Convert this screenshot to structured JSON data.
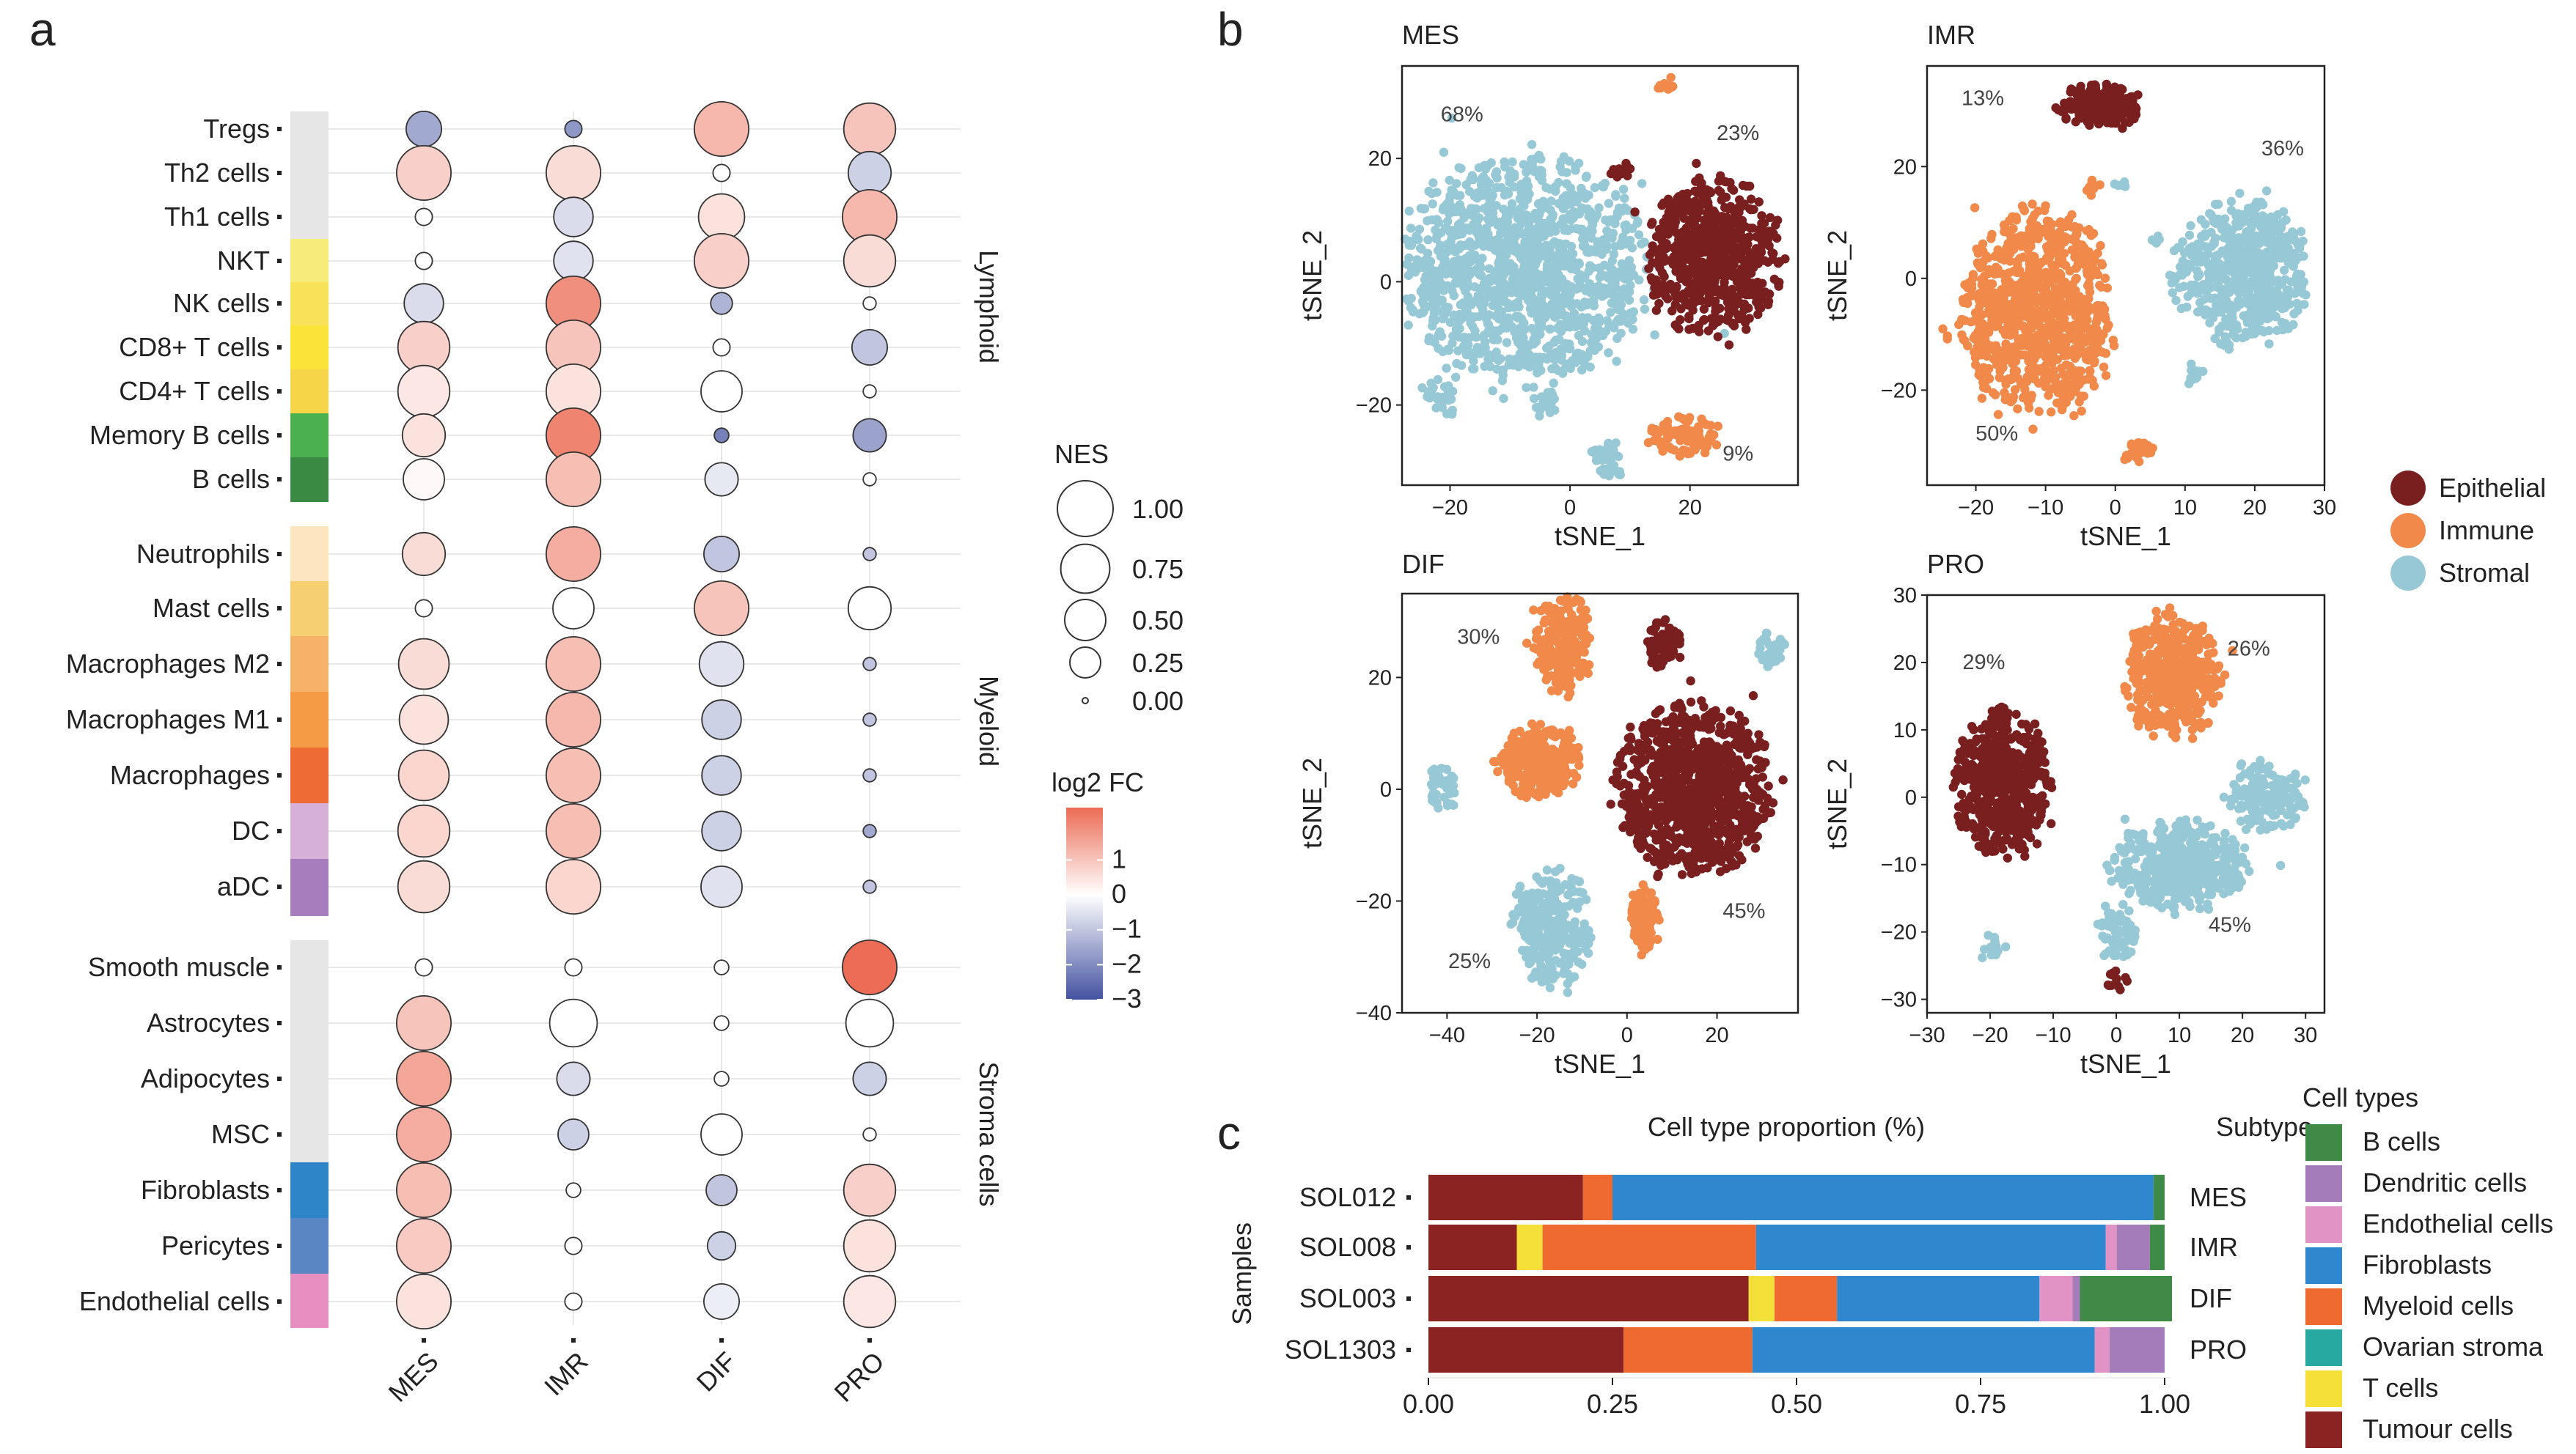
{
  "panel_labels": {
    "a": "a",
    "b": "b",
    "c": "c"
  },
  "chart_data": [
    {
      "type": "bubble",
      "panel": "a",
      "columns": [
        "MES",
        "IMR",
        "DIF",
        "PRO"
      ],
      "rows": [
        "Tregs",
        "Th2 cells",
        "Th1 cells",
        "NKT",
        "NK cells",
        "CD8+ T cells",
        "CD4+ T cells",
        "Memory B cells",
        "B cells",
        "Neutrophils",
        "Mast cells",
        "Macrophages M2",
        "Macrophages M1",
        "Macrophages",
        "DC",
        "aDC",
        "Smooth muscle",
        "Astrocytes",
        "Adipocytes",
        "MSC",
        "Fibroblasts",
        "Pericytes",
        "Endothelial cells"
      ],
      "groups": [
        {
          "name": "Lymphoid",
          "rows": [
            0,
            8
          ]
        },
        {
          "name": "Myeloid",
          "rows": [
            9,
            15
          ]
        },
        {
          "name": "Stroma cells",
          "rows": [
            16,
            22
          ]
        }
      ],
      "row_colors": [
        "#e6e6e6",
        "#e6e6e6",
        "#e6e6e6",
        "#f7ec7a",
        "#f8e25a",
        "#fbe33a",
        "#f7d548",
        "#4bb14f",
        "#3a8a44",
        "#fde6bf",
        "#f5cf72",
        "#f7b26a",
        "#f59a45",
        "#ef6b34",
        "#d6b0d6",
        "#a77dbe",
        "#e6e6e6",
        "#e6e6e6",
        "#e6e6e6",
        "#e6e6e6",
        "#2e86c8",
        "#5b86c4",
        "#e88fc1"
      ],
      "nes": [
        [
          0.35,
          0.05,
          0.95,
          0.85
        ],
        [
          0.95,
          0.95,
          0.05,
          0.55
        ],
        [
          0.05,
          0.45,
          0.65,
          0.95
        ],
        [
          0.05,
          0.45,
          0.95,
          0.85
        ],
        [
          0.45,
          0.95,
          0.1,
          0.02
        ],
        [
          0.85,
          0.95,
          0.05,
          0.35
        ],
        [
          0.85,
          0.95,
          0.5,
          0.02
        ],
        [
          0.55,
          0.95,
          0.03,
          0.3
        ],
        [
          0.5,
          0.95,
          0.3,
          0.02
        ],
        [
          0.55,
          0.95,
          0.35,
          0.02
        ],
        [
          0.05,
          0.5,
          0.95,
          0.55
        ],
        [
          0.8,
          0.95,
          0.6,
          0.02
        ],
        [
          0.75,
          0.95,
          0.45,
          0.02
        ],
        [
          0.8,
          0.95,
          0.45,
          0.02
        ],
        [
          0.85,
          0.95,
          0.45,
          0.02
        ],
        [
          0.85,
          0.95,
          0.5,
          0.02
        ],
        [
          0.05,
          0.05,
          0.03,
          0.95
        ],
        [
          0.95,
          0.7,
          0.03,
          0.7
        ],
        [
          0.95,
          0.3,
          0.03,
          0.3
        ],
        [
          0.95,
          0.25,
          0.5,
          0.02
        ],
        [
          0.95,
          0.03,
          0.25,
          0.85
        ],
        [
          0.95,
          0.05,
          0.2,
          0.85
        ],
        [
          0.95,
          0.05,
          0.35,
          0.85
        ]
      ],
      "log2fc": [
        [
          -1.5,
          -1.8,
          1.2,
          1
        ],
        [
          0.8,
          0.6,
          0,
          -0.8
        ],
        [
          0,
          -0.6,
          0.5,
          1.2
        ],
        [
          0,
          -0.5,
          0.8,
          0.6
        ],
        [
          -0.6,
          1.9,
          -1.3,
          0
        ],
        [
          0.8,
          1,
          0,
          -1
        ],
        [
          0.4,
          0.5,
          0,
          0
        ],
        [
          0.5,
          2.1,
          -2.2,
          -1.6
        ],
        [
          0.1,
          1.1,
          -0.4,
          0
        ],
        [
          0.6,
          1.4,
          -1,
          -1
        ],
        [
          0,
          0,
          1,
          0
        ],
        [
          0.6,
          1.1,
          -0.5,
          -1
        ],
        [
          0.5,
          1.2,
          -0.8,
          -1
        ],
        [
          0.7,
          1.1,
          -0.8,
          -1
        ],
        [
          0.7,
          1.1,
          -0.8,
          -1.5
        ],
        [
          0.6,
          0.7,
          -0.5,
          -1
        ],
        [
          0,
          0,
          0,
          2.8
        ],
        [
          1,
          0,
          0,
          0
        ],
        [
          1.5,
          -0.6,
          0,
          -0.8
        ],
        [
          1.4,
          -0.8,
          0,
          0
        ],
        [
          1.1,
          0,
          -1,
          0.8
        ],
        [
          0.9,
          0,
          -0.8,
          0.5
        ],
        [
          0.5,
          0,
          -0.3,
          0.4
        ]
      ],
      "nes_legend": {
        "title": "NES",
        "labels": [
          "1.00",
          "0.75",
          "0.50",
          "0.25",
          "0.00"
        ],
        "values": [
          1,
          0.75,
          0.5,
          0.25,
          0
        ]
      },
      "fc_legend": {
        "title": "log2 FC",
        "labels": [
          "1",
          "0",
          "−1",
          "−2",
          "−3"
        ],
        "values": [
          1,
          0,
          -1,
          -2,
          -3
        ],
        "range": [
          -3,
          2.5
        ]
      }
    },
    {
      "type": "scatter",
      "panel": "b",
      "xlabel": "tSNE_1",
      "ylabel": "tSNE_2",
      "legend": [
        {
          "name": "Epithelial",
          "color": "#7a1f1f"
        },
        {
          "name": "Immune",
          "color": "#f0894a"
        },
        {
          "name": "Stromal",
          "color": "#97c8d6"
        }
      ],
      "plots": [
        {
          "title": "MES",
          "xlim": [
            -28,
            38
          ],
          "ylim": [
            -33,
            35
          ],
          "xticks": [
            -20,
            0,
            20
          ],
          "xtick_labels": [
            "−20",
            "0",
            "20"
          ],
          "yticks": [
            20,
            0,
            -20
          ],
          "ytick_labels": [
            "20",
            "0",
            "−20"
          ],
          "annotations": [
            {
              "text": "68%",
              "x": -18,
              "y": 26
            },
            {
              "text": "23%",
              "x": 28,
              "y": 23
            },
            {
              "text": "9%",
              "x": 28,
              "y": -29
            }
          ],
          "clusters": [
            {
              "type": "Stromal",
              "cx": -8,
              "cy": 2,
              "rx": 19,
              "ry": 17,
              "n": 1300,
              "seed": 11
            },
            {
              "type": "Epithelial",
              "cx": 24,
              "cy": 4,
              "rx": 10,
              "ry": 12,
              "n": 650,
              "seed": 12
            },
            {
              "type": "Immune",
              "cx": 19,
              "cy": -25,
              "rx": 6,
              "ry": 3,
              "n": 90,
              "seed": 13
            },
            {
              "type": "Stromal",
              "cx": 7,
              "cy": -29,
              "rx": 3,
              "ry": 3,
              "n": 40,
              "seed": 14
            },
            {
              "type": "Stromal",
              "cx": -21,
              "cy": -18,
              "rx": 3,
              "ry": 4,
              "n": 30,
              "seed": 15
            },
            {
              "type": "Stromal",
              "cx": -4,
              "cy": -20,
              "rx": 2,
              "ry": 2,
              "n": 18,
              "seed": 16
            },
            {
              "type": "Immune",
              "cx": 16,
              "cy": 32,
              "rx": 1.3,
              "ry": 1.3,
              "n": 10,
              "seed": 17
            },
            {
              "type": "Epithelial",
              "cx": 8,
              "cy": 18,
              "rx": 2,
              "ry": 1.5,
              "n": 12,
              "seed": 18
            }
          ]
        },
        {
          "title": "IMR",
          "xlim": [
            -27,
            30
          ],
          "ylim": [
            -37,
            38
          ],
          "xticks": [
            -20,
            -10,
            0,
            10,
            20,
            30
          ],
          "xtick_labels": [
            "−20",
            "−10",
            "0",
            "10",
            "20",
            "30"
          ],
          "yticks": [
            20,
            0,
            -20
          ],
          "ytick_labels": [
            "20",
            "0",
            "−20"
          ],
          "annotations": [
            {
              "text": "13%",
              "x": -19,
              "y": 31
            },
            {
              "text": "36%",
              "x": 24,
              "y": 22
            },
            {
              "text": "50%",
              "x": -17,
              "y": -29
            }
          ],
          "clusters": [
            {
              "type": "Epithelial",
              "cx": -2,
              "cy": 31,
              "rx": 5.5,
              "ry": 3.5,
              "n": 200,
              "seed": 21
            },
            {
              "type": "Immune",
              "cx": -11,
              "cy": -6,
              "rx": 10,
              "ry": 17,
              "n": 900,
              "seed": 22
            },
            {
              "type": "Stromal",
              "cx": 18,
              "cy": 1,
              "rx": 9,
              "ry": 12,
              "n": 600,
              "seed": 23
            },
            {
              "type": "Immune",
              "cx": 3,
              "cy": -31,
              "rx": 2,
              "ry": 2,
              "n": 35,
              "seed": 24
            },
            {
              "type": "Immune",
              "cx": -3,
              "cy": 16,
              "rx": 1.2,
              "ry": 1.5,
              "n": 10,
              "seed": 25
            },
            {
              "type": "Stromal",
              "cx": 1,
              "cy": 17,
              "rx": 1,
              "ry": 1,
              "n": 6,
              "seed": 26
            },
            {
              "type": "Stromal",
              "cx": 11,
              "cy": -17,
              "rx": 1.5,
              "ry": 2,
              "n": 12,
              "seed": 27
            },
            {
              "type": "Stromal",
              "cx": 6,
              "cy": 7,
              "rx": 0.8,
              "ry": 1,
              "n": 6,
              "seed": 28
            }
          ]
        },
        {
          "title": "DIF",
          "xlim": [
            -50,
            38
          ],
          "ylim": [
            -40,
            35
          ],
          "xticks": [
            -40,
            -20,
            0,
            20
          ],
          "xtick_labels": [
            "−40",
            "−20",
            "0",
            "20"
          ],
          "yticks": [
            20,
            0,
            -20,
            -40
          ],
          "ytick_labels": [
            "20",
            "0",
            "−20",
            "−40"
          ],
          "annotations": [
            {
              "text": "30%",
              "x": -33,
              "y": 26
            },
            {
              "text": "45%",
              "x": 26,
              "y": -23
            },
            {
              "text": "25%",
              "x": -35,
              "y": -32
            }
          ],
          "clusters": [
            {
              "type": "Epithelial",
              "cx": 15,
              "cy": 0,
              "rx": 16,
              "ry": 14,
              "n": 1000,
              "seed": 31
            },
            {
              "type": "Immune",
              "cx": -20,
              "cy": 5,
              "rx": 9,
              "ry": 6,
              "n": 300,
              "seed": 32
            },
            {
              "type": "Immune",
              "cx": -14,
              "cy": 26,
              "rx": 6,
              "ry": 8,
              "n": 220,
              "seed": 33
            },
            {
              "type": "Epithelial",
              "cx": 8,
              "cy": 26,
              "rx": 4,
              "ry": 4,
              "n": 80,
              "seed": 34
            },
            {
              "type": "Stromal",
              "cx": -17,
              "cy": -25,
              "rx": 8,
              "ry": 10,
              "n": 280,
              "seed": 35
            },
            {
              "type": "Immune",
              "cx": 4,
              "cy": -23,
              "rx": 3,
              "ry": 6,
              "n": 100,
              "seed": 36
            },
            {
              "type": "Stromal",
              "cx": -41,
              "cy": 0,
              "rx": 3,
              "ry": 4,
              "n": 40,
              "seed": 37
            },
            {
              "type": "Stromal",
              "cx": 32,
              "cy": 25,
              "rx": 3,
              "ry": 3,
              "n": 40,
              "seed": 38
            }
          ]
        },
        {
          "title": "PRO",
          "xlim": [
            -30,
            33
          ],
          "ylim": [
            -32,
            30
          ],
          "xticks": [
            -30,
            -20,
            -10,
            0,
            10,
            20,
            30
          ],
          "xtick_labels": [
            "−30",
            "−20",
            "−10",
            "0",
            "10",
            "20",
            "30"
          ],
          "yticks": [
            30,
            20,
            10,
            0,
            -10,
            -20,
            -30
          ],
          "ytick_labels": [
            "30",
            "20",
            "10",
            "0",
            "−10",
            "−20",
            "−30"
          ],
          "annotations": [
            {
              "text": "29%",
              "x": -21,
              "y": 19
            },
            {
              "text": "26%",
              "x": 21,
              "y": 21
            },
            {
              "text": "45%",
              "x": 18,
              "y": -20
            }
          ],
          "clusters": [
            {
              "type": "Epithelial",
              "cx": -18,
              "cy": 2,
              "rx": 7,
              "ry": 10,
              "n": 550,
              "seed": 41
            },
            {
              "type": "Immune",
              "cx": 9,
              "cy": 18,
              "rx": 7,
              "ry": 9,
              "n": 450,
              "seed": 42
            },
            {
              "type": "Stromal",
              "cx": 10,
              "cy": -10,
              "rx": 10,
              "ry": 6,
              "n": 500,
              "seed": 43
            },
            {
              "type": "Stromal",
              "cx": 24,
              "cy": 0,
              "rx": 6,
              "ry": 5,
              "n": 150,
              "seed": 44
            },
            {
              "type": "Stromal",
              "cx": 0,
              "cy": -20,
              "rx": 3,
              "ry": 4,
              "n": 60,
              "seed": 45
            },
            {
              "type": "Epithelial",
              "cx": 0,
              "cy": -27,
              "rx": 1.5,
              "ry": 1.5,
              "n": 15,
              "seed": 46
            },
            {
              "type": "Stromal",
              "cx": -20,
              "cy": -22,
              "rx": 2,
              "ry": 1.5,
              "n": 15,
              "seed": 47
            }
          ]
        }
      ]
    },
    {
      "type": "bar",
      "stacked": true,
      "horizontal": true,
      "panel": "c",
      "title": "Cell type proportion (%)",
      "ylabel": "Samples",
      "subtype_header": "Subtype",
      "categories": [
        "SOL012",
        "SOL008",
        "SOL003",
        "SOL1303"
      ],
      "subtypes": [
        "MES",
        "IMR",
        "DIF",
        "PRO"
      ],
      "xlim": [
        0,
        1
      ],
      "xticks": [
        0,
        0.25,
        0.5,
        0.75,
        1
      ],
      "xtick_labels": [
        "0.00",
        "0.25",
        "0.50",
        "0.75",
        "1.00"
      ],
      "legend_title": "Cell types",
      "series": [
        {
          "name": "Tumour cells",
          "color": "#8b2323",
          "values": [
            0.21,
            0.12,
            0.435,
            0.265
          ]
        },
        {
          "name": "T cells",
          "color": "#f5e03a",
          "values": [
            0,
            0.035,
            0.035,
            0
          ]
        },
        {
          "name": "Myeloid cells",
          "color": "#ee6a30",
          "values": [
            0.04,
            0.29,
            0.085,
            0.175
          ]
        },
        {
          "name": "Ovarian stroma",
          "color": "#27a8a0",
          "values": [
            0,
            0,
            0,
            0
          ]
        },
        {
          "name": "Fibroblasts",
          "color": "#2f88cd",
          "values": [
            0.735,
            0.475,
            0.275,
            0.465
          ]
        },
        {
          "name": "Endothelial cells",
          "color": "#e293c5",
          "values": [
            0,
            0.015,
            0.045,
            0.02
          ]
        },
        {
          "name": "Dendritic cells",
          "color": "#a57cba",
          "values": [
            0,
            0.045,
            0.01,
            0.075
          ]
        },
        {
          "name": "B cells",
          "color": "#3f8a47",
          "values": [
            0.015,
            0.02,
            0.125,
            0
          ]
        }
      ],
      "legend_order": [
        "B cells",
        "Dendritic cells",
        "Endothelial cells",
        "Fibroblasts",
        "Myeloid cells",
        "Ovarian stroma",
        "T cells",
        "Tumour cells"
      ]
    }
  ]
}
